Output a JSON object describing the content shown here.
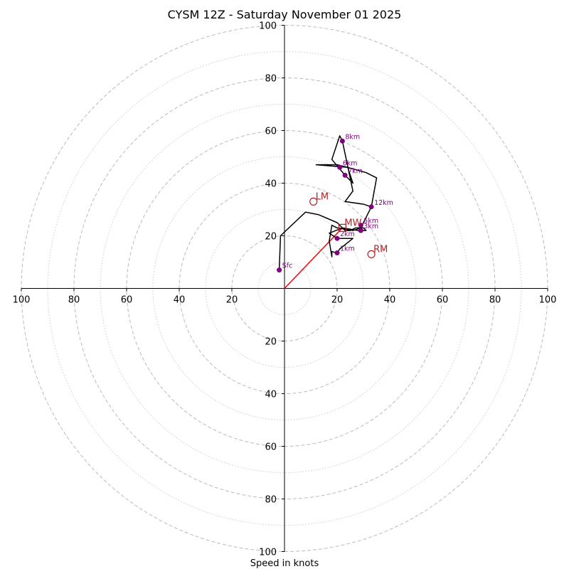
{
  "chart_data": {
    "type": "hodograph",
    "title": "CYSM 12Z - Saturday November 01 2025",
    "xlabel": "Speed in knots",
    "units": "knots",
    "range": [
      -100,
      100
    ],
    "rings_major": [
      20,
      40,
      60,
      80,
      100
    ],
    "rings_minor": [
      10,
      30,
      50,
      70,
      90
    ],
    "tick_labels": [
      "100",
      "80",
      "60",
      "40",
      "20",
      "20",
      "40",
      "60",
      "80",
      "100"
    ],
    "tick_values": [
      -100,
      -80,
      -60,
      -40,
      -20,
      20,
      40,
      60,
      80,
      100
    ],
    "ytick_labels": [
      "100",
      "80",
      "60",
      "40",
      "20",
      "20",
      "40",
      "60",
      "80",
      "100"
    ],
    "ytick_values": [
      100,
      80,
      60,
      40,
      20,
      -20,
      -40,
      -60,
      -80,
      -100
    ],
    "grid": true,
    "colors": {
      "trace": "#000000",
      "height_marker": "#800080",
      "motion": "#b22222",
      "mean_wind_vector": "#ff0000",
      "grid": "#bbbbbb"
    },
    "trace": [
      [
        -2,
        7
      ],
      [
        -1.5,
        20
      ],
      [
        8,
        29
      ],
      [
        13,
        28
      ],
      [
        20,
        25
      ],
      [
        23,
        22
      ],
      [
        25,
        22
      ],
      [
        27,
        23
      ],
      [
        30,
        23
      ],
      [
        31,
        22
      ],
      [
        28,
        22
      ],
      [
        22,
        23
      ],
      [
        17,
        21
      ],
      [
        20,
        19
      ],
      [
        26,
        19
      ],
      [
        21,
        15
      ],
      [
        20,
        13.5
      ],
      [
        18,
        14
      ],
      [
        18,
        12
      ],
      [
        17,
        18
      ],
      [
        18,
        24
      ],
      [
        20,
        23
      ],
      [
        26,
        22
      ],
      [
        29,
        23
      ],
      [
        33,
        31
      ],
      [
        35,
        42
      ],
      [
        31,
        44
      ],
      [
        24,
        46
      ],
      [
        12,
        47
      ],
      [
        20,
        47
      ],
      [
        24,
        46
      ],
      [
        26,
        40
      ],
      [
        23,
        43
      ],
      [
        18,
        49
      ],
      [
        21,
        58
      ],
      [
        22,
        56
      ],
      [
        26,
        37
      ],
      [
        23,
        33
      ],
      [
        30,
        32
      ],
      [
        33,
        31
      ]
    ],
    "height_markers": [
      {
        "label": "Sfc",
        "u": -2,
        "v": 7
      },
      {
        "label": "1km",
        "u": 20,
        "v": 13.5
      },
      {
        "label": "2km",
        "u": 20,
        "v": 19
      },
      {
        "label": "3km",
        "u": 29,
        "v": 22
      },
      {
        "label": "5km",
        "u": 29,
        "v": 24
      },
      {
        "label": "6km",
        "u": 21,
        "v": 46
      },
      {
        "label": "7km",
        "u": 23,
        "v": 43
      },
      {
        "label": "8km",
        "u": 22,
        "v": 56
      },
      {
        "label": "12km",
        "u": 33,
        "v": 31
      }
    ],
    "storm_motion": [
      {
        "label": "LM",
        "marker": "circle",
        "u": 11,
        "v": 33
      },
      {
        "label": "RM",
        "marker": "circle",
        "u": 33,
        "v": 13
      },
      {
        "label": "MW",
        "marker": "square",
        "u": 22,
        "v": 23
      }
    ],
    "mean_wind_vector": {
      "u": 22,
      "v": 23
    }
  }
}
